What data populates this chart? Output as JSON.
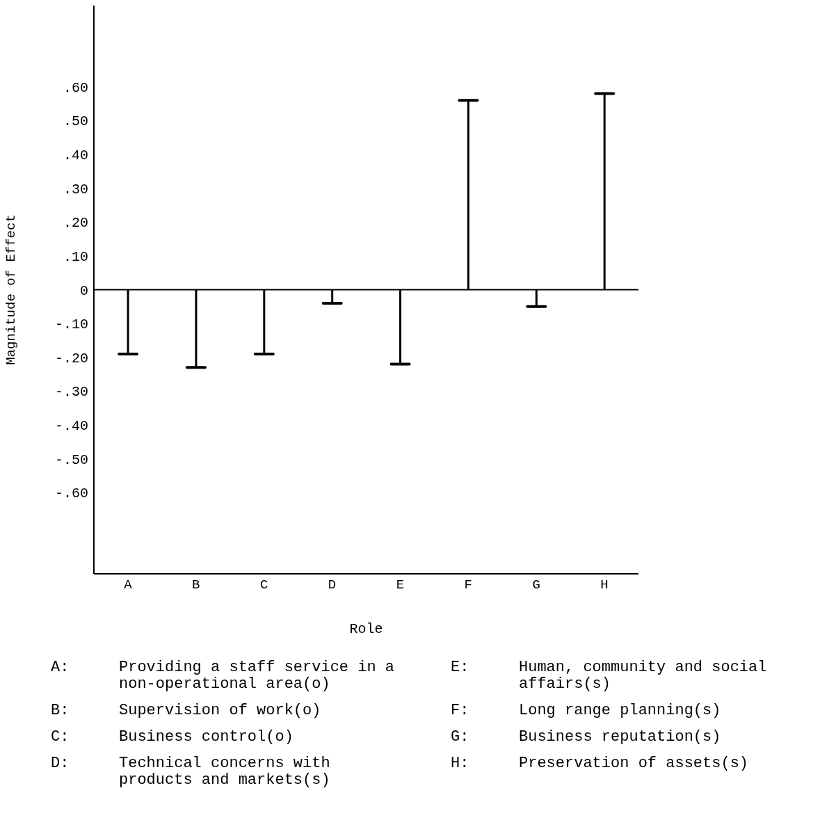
{
  "chart_data": {
    "type": "bar",
    "xlabel": "Role",
    "ylabel": "Magnitude of Effect",
    "categories": [
      "A",
      "B",
      "C",
      "D",
      "E",
      "F",
      "G",
      "H"
    ],
    "values": [
      -0.19,
      -0.23,
      -0.19,
      -0.04,
      -0.22,
      0.56,
      -0.05,
      0.58
    ],
    "color": "#000000",
    "ylim": [
      -0.84,
      0.84
    ],
    "yticks": [
      {
        "value": 0.6,
        "label": ".60"
      },
      {
        "value": 0.5,
        "label": ".50"
      },
      {
        "value": 0.4,
        "label": ".40"
      },
      {
        "value": 0.3,
        "label": ".30"
      },
      {
        "value": 0.2,
        "label": ".20"
      },
      {
        "value": 0.1,
        "label": ".10"
      },
      0,
      {
        "value": -0.1,
        "label": "-.10"
      },
      {
        "value": -0.2,
        "label": "-.20"
      },
      {
        "value": -0.3,
        "label": "-.30"
      },
      {
        "value": -0.4,
        "label": "-.40"
      },
      {
        "value": -0.5,
        "label": "-.50"
      },
      {
        "value": -0.6,
        "label": "-.60"
      }
    ],
    "ref_lines": [
      {
        "axis": "y",
        "value": 0,
        "color": "#000000"
      }
    ],
    "grid": false,
    "legend": false,
    "annotations": [
      "A: Providing a staff service in a non-operational area(o)",
      "B: Supervision of work(o)",
      "C: Business control(o)",
      "D: Technical concerns with products and markets(s)",
      "E: Human, community and social affairs(s)",
      "F: Long range planning(s)",
      "G: Business reputation(s)",
      "H: Preservation of assets(s)"
    ]
  }
}
